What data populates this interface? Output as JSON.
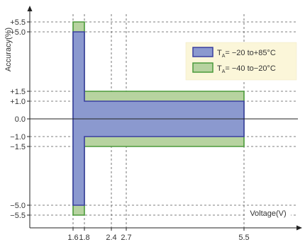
{
  "chart_data": {
    "type": "area",
    "title": "",
    "xlabel": "Voltage(V)",
    "ylabel": "Accuracy(%)",
    "xlim": [
      0.9,
      6.6
    ],
    "ylim": [
      -6.0,
      6.0
    ],
    "x_ticks": [
      {
        "value": 1.6,
        "label": "1.6"
      },
      {
        "value": 1.8,
        "label": "1.8"
      },
      {
        "value": 2.4,
        "label": "2.4"
      },
      {
        "value": 2.7,
        "label": "2.7"
      },
      {
        "value": 5.5,
        "label": "5.5"
      }
    ],
    "y_ticks": [
      {
        "value": 5.5,
        "label": "+5.5"
      },
      {
        "value": 5.0,
        "label": "+5.0"
      },
      {
        "value": 1.5,
        "label": "+1.5"
      },
      {
        "value": 1.0,
        "label": "+1.0"
      },
      {
        "value": 0.0,
        "label": "0.0"
      },
      {
        "value": -1.0,
        "label": "−1.0"
      },
      {
        "value": -1.5,
        "label": "−1.5"
      },
      {
        "value": -5.0,
        "label": "−5.0"
      },
      {
        "value": -5.5,
        "label": "−5.5"
      }
    ],
    "grid": "dashed lines at tick values",
    "legend_position": "top-right",
    "series": [
      {
        "name_parts": [
          "T",
          "A",
          "= −20 to+85°C"
        ],
        "color": "#8b99cf",
        "stroke": "#3b3fa0",
        "points": [
          [
            1.6,
            5.0
          ],
          [
            1.8,
            5.0
          ],
          [
            1.8,
            1.0
          ],
          [
            5.5,
            1.0
          ],
          [
            5.5,
            -1.0
          ],
          [
            1.8,
            -1.0
          ],
          [
            1.8,
            -5.0
          ],
          [
            1.6,
            -5.0
          ]
        ]
      },
      {
        "name_parts": [
          "T",
          "A",
          "= −40 to−20°C"
        ],
        "color": "#b7d3a0",
        "stroke": "#4b9a3a",
        "points": [
          [
            1.6,
            5.5
          ],
          [
            1.8,
            5.5
          ],
          [
            1.8,
            1.5
          ],
          [
            5.5,
            1.5
          ],
          [
            5.5,
            -1.5
          ],
          [
            1.8,
            -1.5
          ],
          [
            1.8,
            -5.5
          ],
          [
            1.6,
            -5.5
          ]
        ]
      }
    ]
  }
}
